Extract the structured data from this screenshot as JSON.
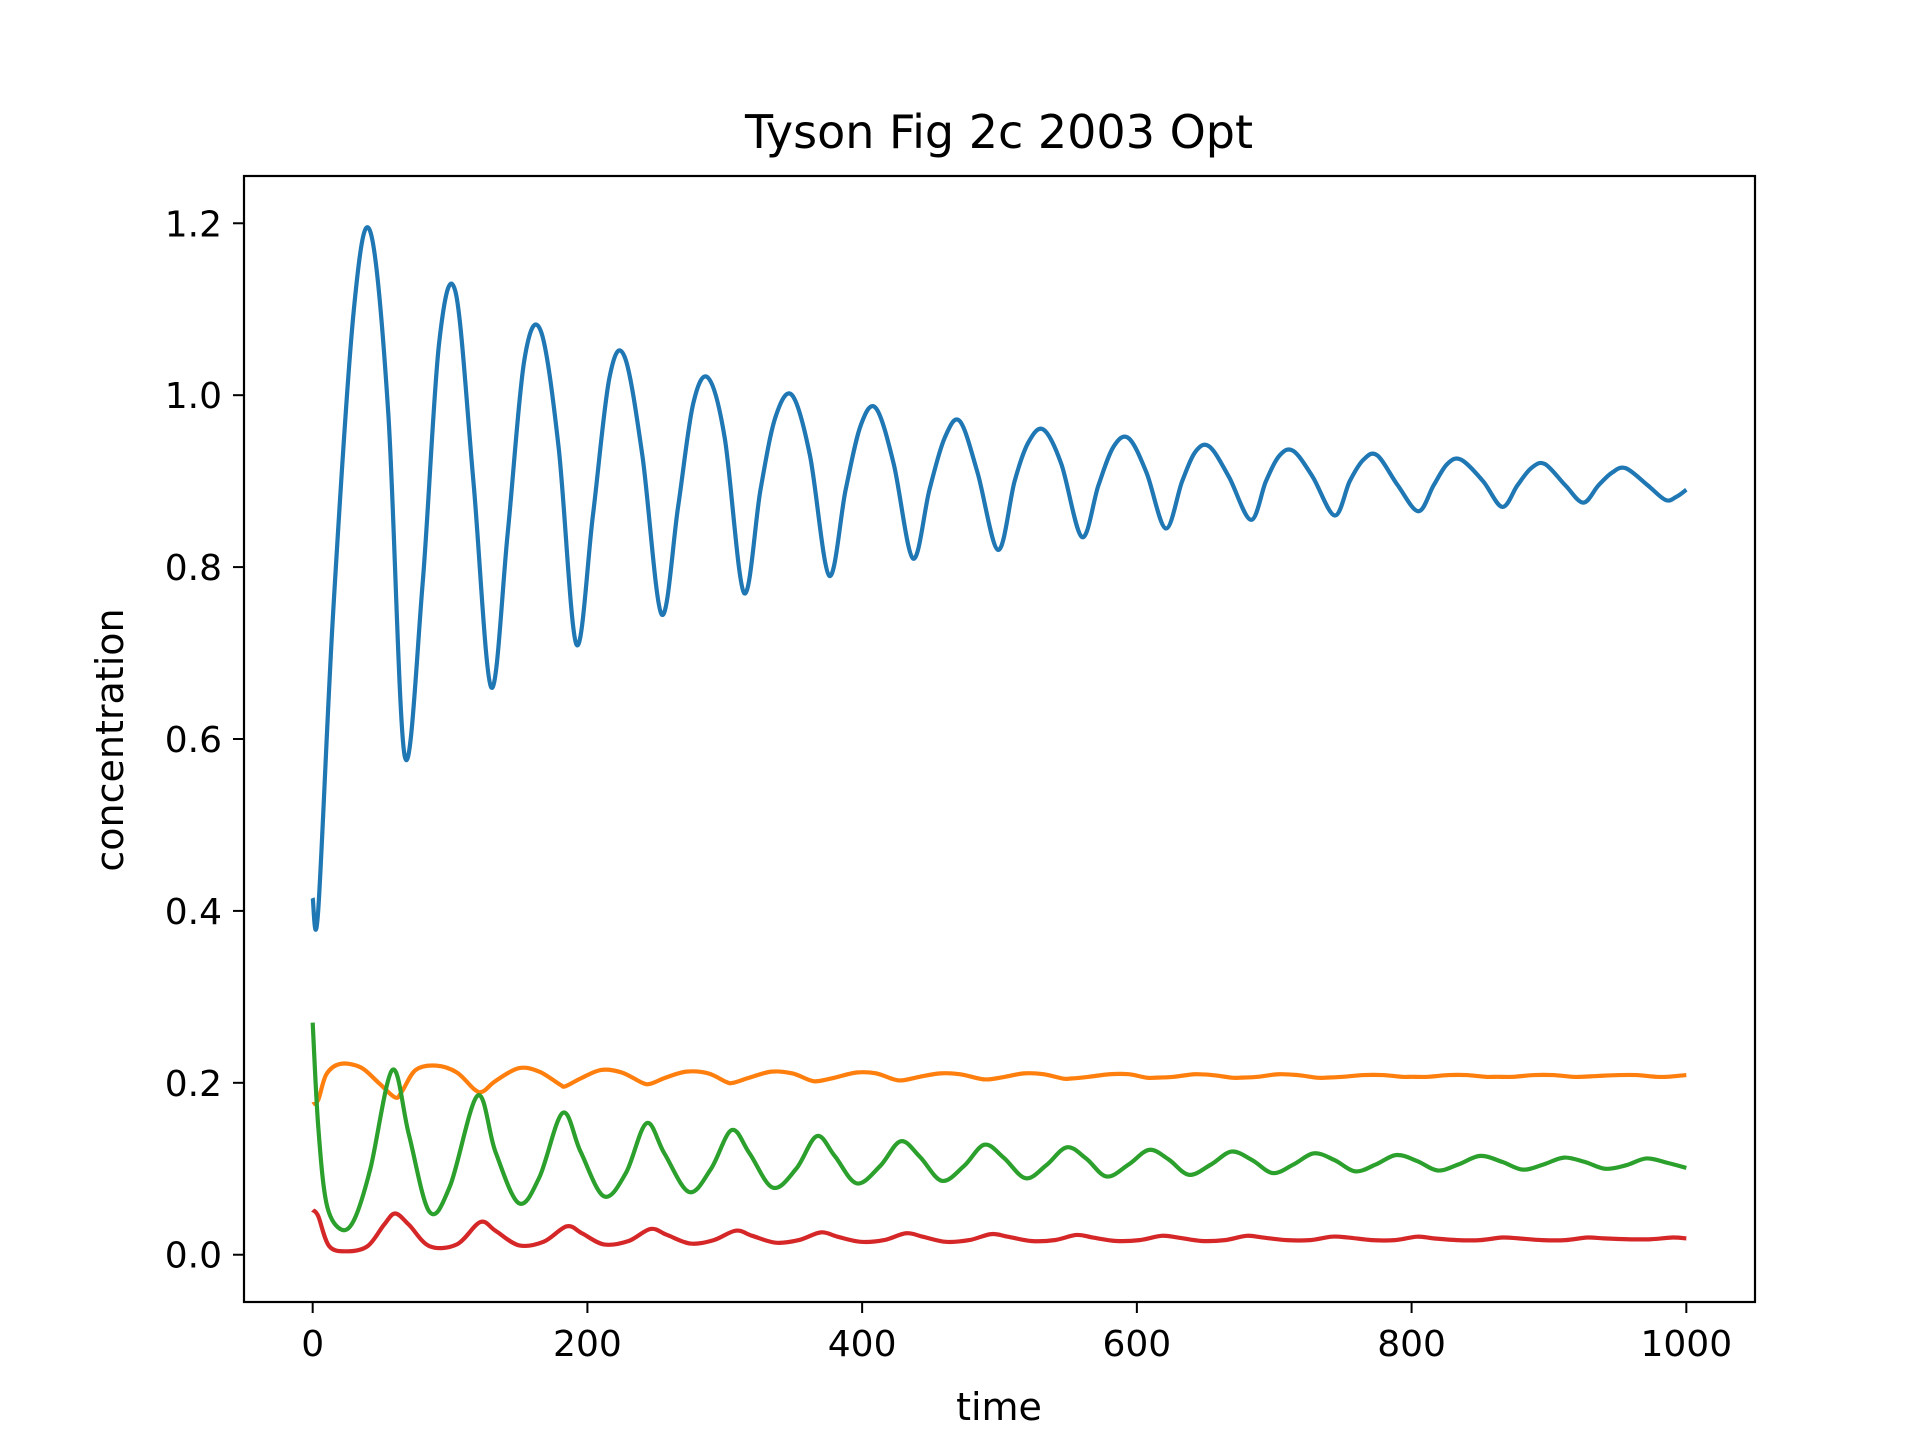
{
  "chart_data": {
    "type": "line",
    "title": "Tyson Fig 2c 2003 Opt",
    "xlabel": "time",
    "ylabel": "concentration",
    "xlim": [
      -50,
      1050
    ],
    "ylim": [
      -0.055,
      1.255
    ],
    "xticks": [
      0,
      200,
      400,
      600,
      800,
      1000
    ],
    "xtick_labels": [
      "0",
      "200",
      "400",
      "600",
      "800",
      "1000"
    ],
    "yticks": [
      0.0,
      0.2,
      0.4,
      0.6,
      0.8,
      1.0,
      1.2
    ],
    "ytick_labels": [
      "0.0",
      "0.2",
      "0.4",
      "0.6",
      "0.8",
      "1.0",
      "1.2"
    ],
    "grid": false,
    "legend": "none",
    "series": [
      {
        "color": "#1f77b4",
        "x": [
          0,
          4,
          15,
          30,
          42,
          55,
          67,
          80,
          92,
          104,
          117,
          130,
          142,
          154,
          166,
          179,
          192,
          204,
          216,
          227,
          240,
          254,
          266,
          277,
          288,
          300,
          314,
          326,
          337,
          349,
          362,
          376,
          388,
          399,
          410,
          423,
          437,
          449,
          460,
          471,
          484,
          499,
          511,
          521,
          532,
          545,
          560,
          572,
          583,
          594,
          607,
          621,
          633,
          643,
          653,
          667,
          683,
          694,
          704,
          714,
          728,
          744,
          755,
          765,
          775,
          790,
          805,
          816,
          826,
          836,
          852,
          866,
          877,
          887,
          897,
          912,
          925,
          936,
          946,
          956,
          972,
          985,
          993,
          1000
        ],
        "y": [
          0.415,
          0.4,
          0.75,
          1.1,
          1.19,
          0.98,
          0.58,
          0.78,
          1.06,
          1.12,
          0.9,
          0.66,
          0.84,
          1.04,
          1.075,
          0.94,
          0.71,
          0.86,
          1.02,
          1.045,
          0.93,
          0.745,
          0.87,
          0.99,
          1.02,
          0.95,
          0.77,
          0.89,
          0.975,
          1.0,
          0.93,
          0.79,
          0.89,
          0.965,
          0.985,
          0.92,
          0.81,
          0.89,
          0.95,
          0.97,
          0.91,
          0.82,
          0.9,
          0.945,
          0.96,
          0.92,
          0.835,
          0.895,
          0.94,
          0.95,
          0.91,
          0.845,
          0.9,
          0.935,
          0.94,
          0.905,
          0.855,
          0.9,
          0.93,
          0.935,
          0.905,
          0.86,
          0.9,
          0.925,
          0.93,
          0.895,
          0.865,
          0.895,
          0.92,
          0.925,
          0.9,
          0.87,
          0.895,
          0.915,
          0.92,
          0.895,
          0.875,
          0.895,
          0.91,
          0.915,
          0.895,
          0.878,
          0.882,
          0.89
        ]
      },
      {
        "color": "#ff7f0e",
        "x": [
          0,
          4,
          10,
          20,
          35,
          48,
          60,
          65,
          75,
          90,
          105,
          118,
          124,
          133,
          150,
          165,
          180,
          184,
          195,
          210,
          225,
          240,
          246,
          257,
          272,
          288,
          301,
          306,
          318,
          334,
          349,
          362,
          368,
          380,
          396,
          410,
          423,
          430,
          442,
          457,
          471,
          485,
          492,
          504,
          518,
          532,
          546,
          552,
          565,
          580,
          594,
          607,
          614,
          627,
          642,
          655,
          669,
          676,
          688,
          703,
          717,
          731,
          738,
          750,
          765,
          779,
          793,
          800,
          812,
          827,
          840,
          854,
          862,
          874,
          889,
          903,
          917,
          924,
          936,
          951,
          964,
          978,
          986,
          1000
        ],
        "y": [
          0.175,
          0.18,
          0.21,
          0.222,
          0.218,
          0.2,
          0.183,
          0.19,
          0.215,
          0.22,
          0.212,
          0.192,
          0.19,
          0.202,
          0.217,
          0.213,
          0.198,
          0.196,
          0.205,
          0.215,
          0.212,
          0.2,
          0.199,
          0.206,
          0.213,
          0.211,
          0.201,
          0.2,
          0.206,
          0.213,
          0.211,
          0.203,
          0.202,
          0.206,
          0.212,
          0.211,
          0.204,
          0.203,
          0.207,
          0.211,
          0.21,
          0.205,
          0.204,
          0.207,
          0.211,
          0.21,
          0.205,
          0.205,
          0.207,
          0.21,
          0.21,
          0.206,
          0.206,
          0.207,
          0.21,
          0.209,
          0.206,
          0.206,
          0.207,
          0.21,
          0.209,
          0.206,
          0.206,
          0.207,
          0.209,
          0.209,
          0.207,
          0.207,
          0.207,
          0.209,
          0.209,
          0.207,
          0.207,
          0.207,
          0.209,
          0.209,
          0.207,
          0.207,
          0.208,
          0.209,
          0.209,
          0.207,
          0.207,
          0.209
        ]
      },
      {
        "color": "#2ca02c",
        "x": [
          0,
          4,
          10,
          20,
          30,
          42,
          58,
          70,
          85,
          100,
          120,
          133,
          150,
          165,
          182,
          195,
          212,
          228,
          243,
          256,
          274,
          290,
          305,
          318,
          335,
          352,
          367,
          380,
          396,
          413,
          428,
          442,
          458,
          474,
          489,
          503,
          519,
          534,
          549,
          563,
          578,
          594,
          609,
          623,
          638,
          654,
          669,
          684,
          699,
          714,
          729,
          744,
          759,
          774,
          789,
          804,
          819,
          834,
          850,
          866,
          881,
          896,
          911,
          926,
          941,
          956,
          971,
          986,
          1000
        ],
        "y": [
          0.27,
          0.15,
          0.06,
          0.03,
          0.04,
          0.1,
          0.215,
          0.14,
          0.05,
          0.08,
          0.185,
          0.12,
          0.06,
          0.09,
          0.165,
          0.12,
          0.068,
          0.095,
          0.153,
          0.118,
          0.073,
          0.1,
          0.145,
          0.118,
          0.078,
          0.1,
          0.138,
          0.115,
          0.083,
          0.103,
          0.132,
          0.114,
          0.086,
          0.103,
          0.128,
          0.113,
          0.089,
          0.104,
          0.125,
          0.112,
          0.091,
          0.105,
          0.122,
          0.111,
          0.093,
          0.105,
          0.12,
          0.11,
          0.095,
          0.105,
          0.118,
          0.11,
          0.097,
          0.105,
          0.116,
          0.109,
          0.098,
          0.105,
          0.115,
          0.108,
          0.099,
          0.105,
          0.113,
          0.108,
          0.1,
          0.104,
          0.112,
          0.107,
          0.101
        ]
      },
      {
        "color": "#d62728",
        "x": [
          0,
          4,
          12,
          25,
          40,
          52,
          60,
          70,
          85,
          105,
          122,
          133,
          150,
          168,
          185,
          196,
          212,
          230,
          246,
          258,
          275,
          292,
          308,
          320,
          337,
          354,
          370,
          382,
          399,
          416,
          432,
          444,
          461,
          478,
          494,
          506,
          523,
          540,
          556,
          568,
          585,
          602,
          618,
          630,
          647,
          664,
          680,
          692,
          709,
          726,
          742,
          754,
          771,
          788,
          804,
          816,
          833,
          850,
          866,
          878,
          895,
          912,
          928,
          940,
          957,
          974,
          990,
          1000
        ],
        "y": [
          0.052,
          0.045,
          0.01,
          0.004,
          0.01,
          0.035,
          0.048,
          0.035,
          0.01,
          0.012,
          0.038,
          0.028,
          0.011,
          0.015,
          0.033,
          0.025,
          0.012,
          0.016,
          0.03,
          0.023,
          0.013,
          0.017,
          0.028,
          0.022,
          0.014,
          0.017,
          0.026,
          0.021,
          0.015,
          0.017,
          0.025,
          0.021,
          0.015,
          0.017,
          0.024,
          0.021,
          0.016,
          0.017,
          0.023,
          0.02,
          0.016,
          0.017,
          0.022,
          0.02,
          0.016,
          0.017,
          0.022,
          0.02,
          0.017,
          0.017,
          0.021,
          0.02,
          0.017,
          0.017,
          0.021,
          0.019,
          0.017,
          0.017,
          0.02,
          0.019,
          0.017,
          0.017,
          0.02,
          0.019,
          0.018,
          0.018,
          0.02,
          0.019
        ]
      }
    ]
  }
}
